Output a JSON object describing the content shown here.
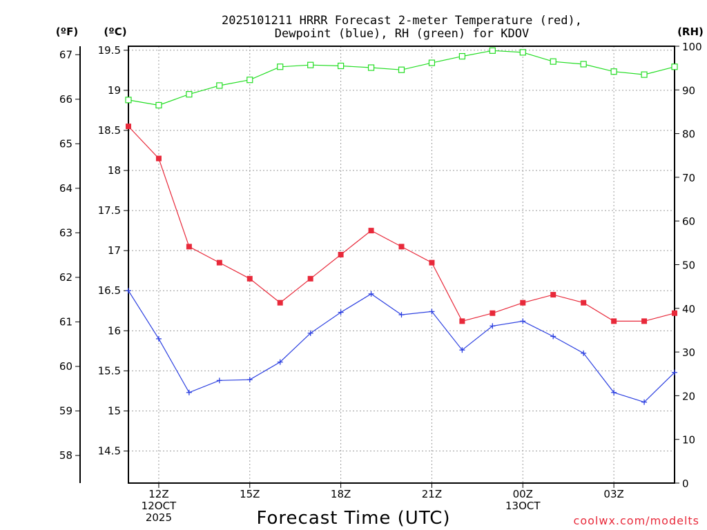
{
  "chart_data": {
    "type": "line",
    "title": [
      "2025101211 HRRR Forecast 2-meter Temperature (red),",
      "Dewpoint (blue), RH (green) for KDOV"
    ],
    "xlabel": "Forecast Time (UTC)",
    "credit": "coolwx.com/modelts",
    "units": {
      "fahrenheit": "(ºF)",
      "celsius": "(ºC)",
      "rh": "(RH)"
    },
    "x_hours": [
      11,
      12,
      13,
      14,
      15,
      16,
      17,
      18,
      19,
      20,
      21,
      22,
      23,
      24,
      25,
      26,
      27,
      28,
      29
    ],
    "xlim": [
      11,
      29
    ],
    "x_ticks": [
      {
        "hour": 12,
        "lines": [
          "12Z",
          "12OCT",
          "2025"
        ]
      },
      {
        "hour": 15,
        "lines": [
          "15Z"
        ]
      },
      {
        "hour": 18,
        "lines": [
          "18Z"
        ]
      },
      {
        "hour": 21,
        "lines": [
          "21Z"
        ]
      },
      {
        "hour": 24,
        "lines": [
          "00Z",
          "13OCT"
        ]
      },
      {
        "hour": 27,
        "lines": [
          "03Z"
        ]
      }
    ],
    "celsius_axis": {
      "ylim": [
        14.1,
        19.55
      ],
      "ticks": [
        "14.5",
        "15",
        "15.5",
        "16",
        "16.5",
        "17",
        "17.5",
        "18",
        "18.5",
        "19",
        "19.5"
      ]
    },
    "fahrenheit_axis": {
      "ticks": [
        "58",
        "59",
        "60",
        "61",
        "62",
        "63",
        "64",
        "65",
        "66",
        "67"
      ]
    },
    "rh_axis": {
      "ylim": [
        0,
        100
      ],
      "ticks": [
        "0",
        "10",
        "20",
        "30",
        "40",
        "50",
        "60",
        "70",
        "80",
        "90",
        "100"
      ]
    },
    "series": [
      {
        "name": "Temperature",
        "axis": "celsius",
        "color": "#e8293a",
        "marker": "filled-square",
        "values": [
          18.55,
          18.15,
          17.05,
          16.85,
          16.65,
          16.35,
          16.65,
          16.95,
          17.25,
          17.05,
          16.85,
          16.12,
          16.22,
          16.35,
          16.45,
          16.35,
          16.12,
          16.12,
          16.22
        ]
      },
      {
        "name": "Dewpoint",
        "axis": "celsius",
        "color": "#2a3ee0",
        "marker": "plus",
        "values": [
          16.5,
          15.9,
          15.23,
          15.38,
          15.39,
          15.61,
          15.97,
          16.23,
          16.46,
          16.2,
          16.24,
          15.76,
          16.06,
          16.12,
          15.93,
          15.72,
          15.23,
          15.11,
          15.48
        ]
      },
      {
        "name": "RH",
        "axis": "rh",
        "color": "#22dd22",
        "marker": "open-square",
        "values": [
          87.7,
          86.5,
          89.0,
          91.0,
          92.3,
          95.3,
          95.7,
          95.5,
          95.1,
          94.6,
          96.2,
          97.7,
          99.0,
          98.6,
          96.5,
          95.9,
          94.2,
          93.5,
          95.3
        ]
      }
    ]
  }
}
